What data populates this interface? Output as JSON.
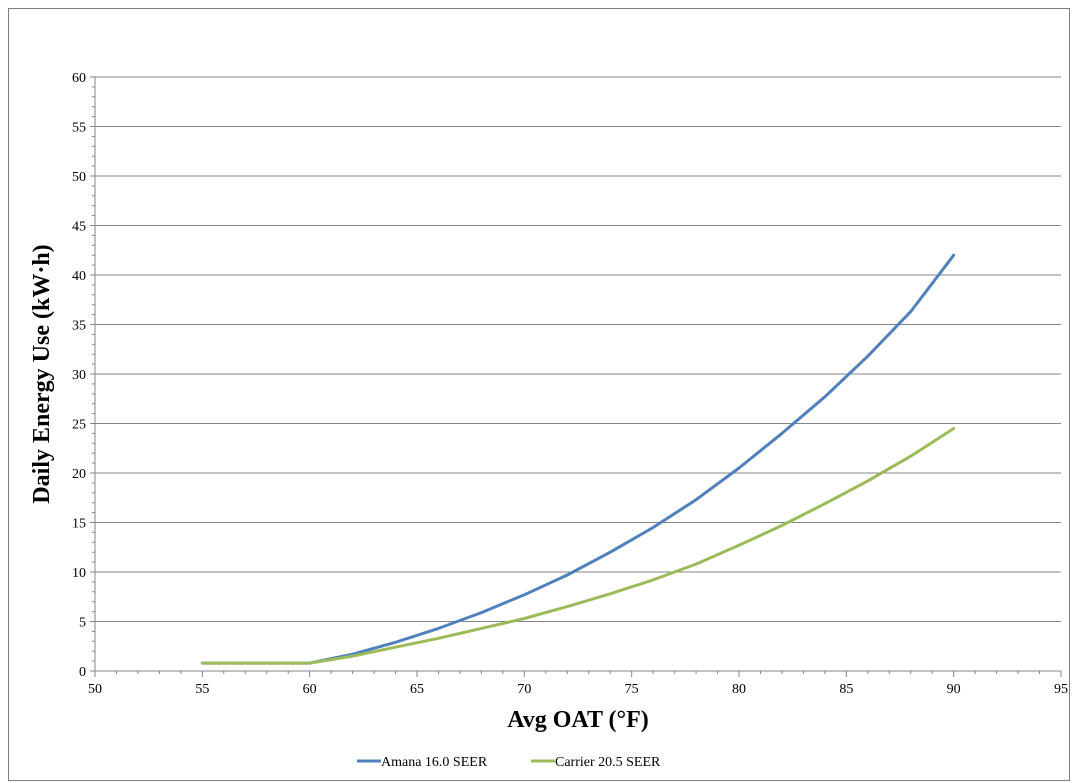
{
  "chart_data": {
    "type": "line",
    "title": "",
    "xlabel": "Avg OAT (°F)",
    "ylabel": "Daily Energy Use (kW·h)",
    "xlim": [
      50,
      95
    ],
    "ylim": [
      0,
      60
    ],
    "x_ticks": [
      50,
      55,
      60,
      65,
      70,
      75,
      80,
      85,
      90,
      95
    ],
    "y_ticks": [
      0,
      5,
      10,
      15,
      20,
      25,
      30,
      35,
      40,
      45,
      50,
      55,
      60
    ],
    "grid": "horizontal major gridlines",
    "legend_position": "bottom",
    "series": [
      {
        "name": "Amana 16.0 SEER",
        "color": "#4f81bd",
        "x": [
          55,
          56,
          57,
          58,
          59,
          60,
          62,
          64,
          66,
          68,
          70,
          72,
          74,
          76,
          78,
          80,
          82,
          84,
          86,
          88,
          90
        ],
        "y": [
          0.8,
          0.8,
          0.8,
          0.8,
          0.8,
          0.8,
          1.7,
          2.9,
          4.3,
          5.9,
          7.7,
          9.7,
          12.0,
          14.5,
          17.3,
          20.5,
          24.0,
          27.7,
          31.8,
          36.3,
          42.0
        ]
      },
      {
        "name": "Carrier 20.5 SEER",
        "color": "#9bbb59",
        "x": [
          55,
          56,
          57,
          58,
          59,
          60,
          62,
          64,
          66,
          68,
          70,
          72,
          74,
          76,
          78,
          80,
          82,
          84,
          86,
          88,
          90
        ],
        "y": [
          0.8,
          0.8,
          0.8,
          0.8,
          0.8,
          0.8,
          1.5,
          2.4,
          3.3,
          4.3,
          5.3,
          6.5,
          7.8,
          9.2,
          10.8,
          12.7,
          14.7,
          16.9,
          19.2,
          21.7,
          24.5
        ]
      }
    ]
  }
}
